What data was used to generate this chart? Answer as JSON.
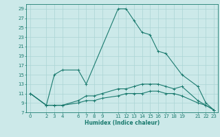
{
  "xlabel": "Humidex (Indice chaleur)",
  "bg_color": "#cce9e9",
  "grid_color": "#aad4d4",
  "line_color": "#1a7a6e",
  "xlim": [
    -0.5,
    23.5
  ],
  "ylim": [
    7,
    30
  ],
  "xticks": [
    0,
    2,
    3,
    4,
    6,
    7,
    8,
    9,
    11,
    12,
    13,
    14,
    15,
    16,
    17,
    18,
    19,
    21,
    22,
    23
  ],
  "yticks": [
    7,
    9,
    11,
    13,
    15,
    17,
    19,
    21,
    23,
    25,
    27,
    29
  ],
  "lines": [
    {
      "x": [
        0,
        2,
        3,
        4,
        6,
        7,
        11,
        12,
        13,
        14,
        15,
        16,
        17,
        19,
        21,
        22,
        23
      ],
      "y": [
        11,
        8.5,
        15,
        16,
        16,
        13,
        29,
        29,
        26.5,
        24,
        23.5,
        20,
        19.5,
        15,
        12.5,
        9,
        7.5
      ]
    },
    {
      "x": [
        0,
        2,
        3,
        4,
        6,
        7,
        8,
        9,
        11,
        12,
        13,
        14,
        15,
        16,
        17,
        18,
        19,
        21,
        22,
        23
      ],
      "y": [
        11,
        8.5,
        8.5,
        8.5,
        9.5,
        10.5,
        10.5,
        11,
        12,
        12,
        12.5,
        13,
        13,
        13,
        12.5,
        12,
        12.5,
        9.5,
        8.5,
        7.5
      ]
    },
    {
      "x": [
        0,
        2,
        3,
        4,
        6,
        7,
        8,
        9,
        11,
        12,
        13,
        14,
        15,
        16,
        17,
        18,
        19,
        21,
        22,
        23
      ],
      "y": [
        11,
        8.5,
        8.5,
        8.5,
        9,
        9.5,
        9.5,
        10,
        10.5,
        11,
        11,
        11,
        11.5,
        11.5,
        11,
        11,
        10.5,
        9,
        8.5,
        7.5
      ]
    }
  ]
}
